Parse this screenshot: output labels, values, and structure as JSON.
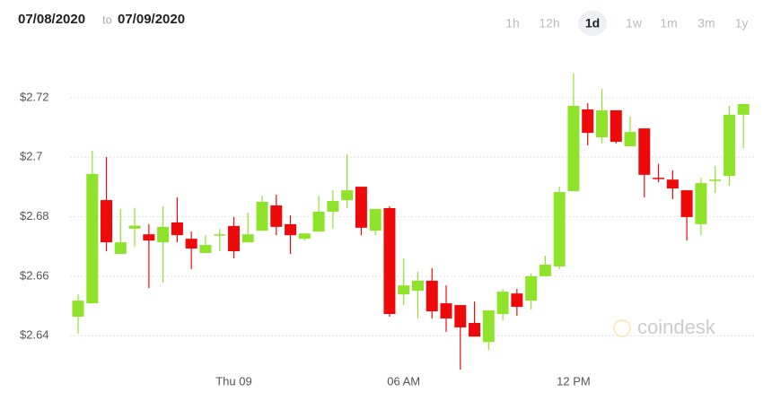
{
  "header": {
    "from": "07/08/2020",
    "to_word": "to",
    "to": "07/09/2020"
  },
  "ranges": [
    "1h",
    "12h",
    "1d",
    "1w",
    "1m",
    "3m",
    "1y"
  ],
  "selected_range": 2,
  "watermark": "coindesk",
  "chart_data": {
    "type": "candlestick",
    "categories": [
      null,
      null,
      null,
      null,
      null,
      null,
      null,
      null,
      null,
      null,
      null,
      "Thu 09",
      null,
      null,
      null,
      null,
      null,
      null,
      null,
      null,
      null,
      null,
      null,
      "06 AM",
      null,
      null,
      null,
      null,
      null,
      null,
      null,
      null,
      null,
      null,
      null,
      "12 PM",
      null,
      null,
      null,
      null,
      null,
      null,
      null,
      null,
      null,
      null,
      null,
      null
    ],
    "open": [
      2.6464,
      2.6509,
      2.6856,
      2.6675,
      2.676,
      2.6741,
      2.6714,
      2.6781,
      2.6726,
      2.6678,
      2.6741,
      2.6769,
      2.6714,
      2.6753,
      2.6838,
      2.6775,
      2.6726,
      2.675,
      2.6817,
      2.6856,
      2.6901,
      2.6753,
      2.6829,
      2.6539,
      2.6551,
      2.6585,
      2.6509,
      2.6503,
      2.6443,
      2.6379,
      2.6473,
      2.6542,
      2.6518,
      2.66,
      2.6633,
      2.6886,
      2.7161,
      2.7067,
      2.7158,
      2.7037,
      2.7097,
      2.6931,
      2.6925,
      2.6889,
      2.6775,
      2.6922,
      2.6937,
      2.7143
    ],
    "high": [
      2.6539,
      2.7022,
      2.7001,
      2.6826,
      2.683,
      2.6775,
      2.6835,
      2.6865,
      2.675,
      2.6738,
      2.6759,
      2.6799,
      2.6814,
      2.6871,
      2.6874,
      2.6805,
      2.6744,
      2.6871,
      2.6889,
      2.701,
      2.6901,
      2.6826,
      2.6835,
      2.666,
      2.6615,
      2.6627,
      2.6569,
      2.6503,
      2.6515,
      2.6485,
      2.6557,
      2.6557,
      2.6609,
      2.6669,
      2.6901,
      2.7281,
      2.7182,
      2.723,
      2.7158,
      2.7137,
      2.7097,
      2.6978,
      2.6956,
      2.6889,
      2.6931,
      2.6971,
      2.7173,
      2.7179
    ],
    "low": [
      2.6407,
      2.6509,
      2.6684,
      2.6675,
      2.67,
      2.656,
      2.6578,
      2.6714,
      2.6624,
      2.6678,
      2.6684,
      2.666,
      2.6714,
      2.6753,
      2.6738,
      2.6675,
      2.672,
      2.675,
      2.676,
      2.6829,
      2.6738,
      2.6738,
      2.6464,
      2.6503,
      2.6458,
      2.6458,
      2.6413,
      2.6286,
      2.6397,
      2.6352,
      2.6452,
      2.6467,
      2.6488,
      2.66,
      2.6624,
      2.6886,
      2.704,
      2.7046,
      2.7046,
      2.7037,
      2.6865,
      2.6916,
      2.6859,
      2.672,
      2.6738,
      2.688,
      2.6904,
      2.7031
    ],
    "close": [
      2.6518,
      2.6944,
      2.6714,
      2.6714,
      2.677,
      2.672,
      2.6766,
      2.6738,
      2.6693,
      2.6705,
      2.6741,
      2.6684,
      2.6741,
      2.685,
      2.6766,
      2.6738,
      2.6744,
      2.6817,
      2.6853,
      2.6889,
      2.6763,
      2.6826,
      2.6473,
      2.6569,
      2.6585,
      2.6482,
      2.6458,
      2.6428,
      2.6397,
      2.6485,
      2.6548,
      2.6497,
      2.66,
      2.6639,
      2.6883,
      2.7173,
      2.7082,
      2.7158,
      2.7052,
      2.7085,
      2.6941,
      2.6928,
      2.6895,
      2.6799,
      2.6913,
      2.6925,
      2.7143,
      2.7179
    ],
    "up_color": "#8fe32b",
    "down_color": "#ee0a0a",
    "ylim": [
      2.627,
      2.741
    ],
    "yticks": [
      {
        "value": 2.64,
        "label": "$2.64"
      },
      {
        "value": 2.66,
        "label": "$2.66"
      },
      {
        "value": 2.68,
        "label": "$2.68"
      },
      {
        "value": 2.7,
        "label": "$2.7"
      },
      {
        "value": 2.72,
        "label": "$2.72"
      }
    ],
    "grid": true
  }
}
